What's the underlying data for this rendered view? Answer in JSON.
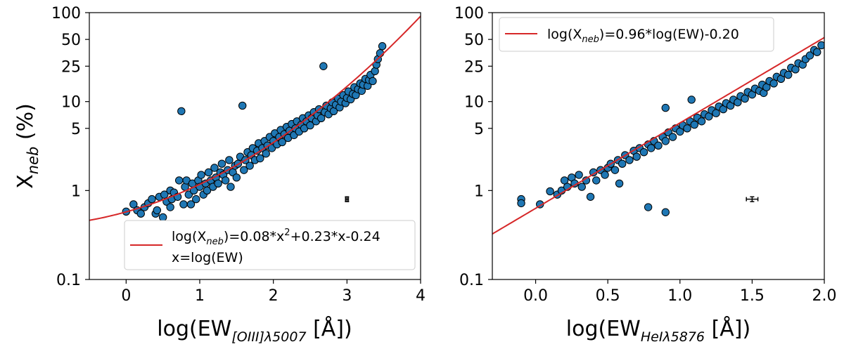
{
  "chart_data": [
    {
      "type": "scatter",
      "xlabel": "log(EW[OIII]λ5007 [Å])",
      "xlabel_main": "log(EW",
      "xlabel_sub": "[OIII]λ5007",
      "xlabel_tail": " [Å])",
      "ylabel": "Xneb (%)",
      "ylabel_main": "X",
      "ylabel_sub": "neb",
      "ylabel_tail": " (%)",
      "yscale": "log",
      "xlim": [
        -0.5,
        4.0
      ],
      "ylim": [
        0.1,
        100
      ],
      "xticks": [
        "0",
        "1",
        "2",
        "3",
        "4"
      ],
      "xtick_values": [
        0,
        1,
        2,
        3,
        4
      ],
      "yticks": [
        "0.1",
        "1",
        "5",
        "10",
        "25",
        "50",
        "100"
      ],
      "ytick_values": [
        0.1,
        1,
        5,
        10,
        25,
        50,
        100
      ],
      "fit": {
        "kind": "quadratic",
        "coeffs": [
          0.08,
          0.23,
          -0.24
        ],
        "color": "#d62728",
        "legend_line1": "log(Xneb)=0.08*x²+0.23*x-0.24",
        "legend_line1_a": "log(X",
        "legend_line1_sub": "neb",
        "legend_line1_b": ")=0.08*x",
        "legend_line1_sup": "2",
        "legend_line1_c": "+0.23*x-0.24",
        "legend_line2": "x=log(EW)",
        "legend_loc": "lower-right"
      },
      "errorbar": {
        "x": 3.0,
        "y": 0.8,
        "xerr": 0.02,
        "yerr": 0.05
      },
      "point_color": "#1f77b4",
      "points": [
        [
          0,
          0.58
        ],
        [
          0.1,
          0.7
        ],
        [
          0.15,
          0.6
        ],
        [
          0.2,
          0.55
        ],
        [
          0.25,
          0.65
        ],
        [
          0.3,
          0.72
        ],
        [
          0.35,
          0.8
        ],
        [
          0.4,
          0.55
        ],
        [
          0.42,
          0.6
        ],
        [
          0.45,
          0.85
        ],
        [
          0.5,
          0.5
        ],
        [
          0.52,
          0.9
        ],
        [
          0.55,
          0.75
        ],
        [
          0.6,
          0.65
        ],
        [
          0.6,
          1.0
        ],
        [
          0.62,
          0.8
        ],
        [
          0.65,
          0.95
        ],
        [
          0.7,
          0.85
        ],
        [
          0.72,
          1.3
        ],
        [
          0.75,
          7.8
        ],
        [
          0.78,
          0.7
        ],
        [
          0.8,
          1.1
        ],
        [
          0.82,
          1.3
        ],
        [
          0.85,
          0.9
        ],
        [
          0.88,
          0.7
        ],
        [
          0.9,
          1.2
        ],
        [
          0.92,
          1.0
        ],
        [
          0.95,
          0.8
        ],
        [
          0.98,
          1.3
        ],
        [
          1.0,
          1.1
        ],
        [
          1.02,
          1.5
        ],
        [
          1.05,
          0.9
        ],
        [
          1.08,
          1.2
        ],
        [
          1.1,
          1.0
        ],
        [
          1.12,
          1.6
        ],
        [
          1.15,
          1.3
        ],
        [
          1.18,
          1.1
        ],
        [
          1.2,
          1.8
        ],
        [
          1.22,
          1.4
        ],
        [
          1.25,
          1.2
        ],
        [
          1.28,
          1.6
        ],
        [
          1.3,
          2.0
        ],
        [
          1.32,
          1.5
        ],
        [
          1.35,
          1.3
        ],
        [
          1.38,
          1.7
        ],
        [
          1.4,
          2.2
        ],
        [
          1.42,
          1.1
        ],
        [
          1.45,
          1.6
        ],
        [
          1.48,
          1.9
        ],
        [
          1.5,
          1.4
        ],
        [
          1.52,
          2.0
        ],
        [
          1.55,
          2.4
        ],
        [
          1.58,
          9.0
        ],
        [
          1.6,
          1.7
        ],
        [
          1.62,
          2.2
        ],
        [
          1.65,
          2.7
        ],
        [
          1.68,
          1.9
        ],
        [
          1.7,
          2.5
        ],
        [
          1.72,
          3.0
        ],
        [
          1.75,
          2.2
        ],
        [
          1.78,
          2.8
        ],
        [
          1.8,
          3.4
        ],
        [
          1.82,
          2.3
        ],
        [
          1.85,
          3.0
        ],
        [
          1.88,
          3.6
        ],
        [
          1.9,
          2.6
        ],
        [
          1.92,
          3.2
        ],
        [
          1.95,
          4.0
        ],
        [
          1.98,
          3.0
        ],
        [
          2.0,
          3.6
        ],
        [
          2.02,
          4.4
        ],
        [
          2.05,
          3.3
        ],
        [
          2.08,
          4.0
        ],
        [
          2.1,
          4.8
        ],
        [
          2.12,
          3.5
        ],
        [
          2.15,
          4.3
        ],
        [
          2.18,
          5.2
        ],
        [
          2.2,
          3.9
        ],
        [
          2.22,
          4.7
        ],
        [
          2.25,
          5.6
        ],
        [
          2.28,
          4.2
        ],
        [
          2.3,
          5.0
        ],
        [
          2.32,
          6.0
        ],
        [
          2.35,
          4.6
        ],
        [
          2.38,
          5.5
        ],
        [
          2.4,
          6.5
        ],
        [
          2.42,
          5.0
        ],
        [
          2.45,
          6.0
        ],
        [
          2.48,
          7.0
        ],
        [
          2.5,
          5.4
        ],
        [
          2.52,
          6.5
        ],
        [
          2.55,
          7.6
        ],
        [
          2.58,
          6.0
        ],
        [
          2.6,
          7.0
        ],
        [
          2.62,
          8.2
        ],
        [
          2.65,
          6.5
        ],
        [
          2.68,
          25.0
        ],
        [
          2.7,
          7.6
        ],
        [
          2.72,
          9.0
        ],
        [
          2.75,
          7.2
        ],
        [
          2.78,
          8.4
        ],
        [
          2.8,
          9.8
        ],
        [
          2.82,
          7.8
        ],
        [
          2.85,
          9.2
        ],
        [
          2.88,
          10.8
        ],
        [
          2.9,
          8.6
        ],
        [
          2.92,
          10.0
        ],
        [
          2.95,
          11.8
        ],
        [
          2.98,
          9.6
        ],
        [
          3.0,
          11.0
        ],
        [
          3.02,
          13.0
        ],
        [
          3.05,
          10.6
        ],
        [
          3.08,
          12.2
        ],
        [
          3.1,
          14.5
        ],
        [
          3.12,
          11.8
        ],
        [
          3.15,
          13.8
        ],
        [
          3.18,
          16.0
        ],
        [
          3.2,
          13.2
        ],
        [
          3.22,
          15.5
        ],
        [
          3.25,
          18.0
        ],
        [
          3.28,
          15.0
        ],
        [
          3.3,
          17.5
        ],
        [
          3.32,
          20.0
        ],
        [
          3.35,
          17.0
        ],
        [
          3.38,
          22.0
        ],
        [
          3.4,
          26.0
        ],
        [
          3.42,
          30.0
        ],
        [
          3.45,
          35.0
        ],
        [
          3.48,
          42.0
        ]
      ]
    },
    {
      "type": "scatter",
      "xlabel": "log(EWHeIλ5876 [Å])",
      "xlabel_main": "log(EW",
      "xlabel_sub": "HeIλ5876",
      "xlabel_tail": " [Å])",
      "yscale": "log",
      "xlim": [
        -0.3,
        2.0
      ],
      "ylim": [
        0.1,
        100
      ],
      "xticks": [
        "0.0",
        "0.5",
        "1.0",
        "1.5",
        "2.0"
      ],
      "xtick_values": [
        0.0,
        0.5,
        1.0,
        1.5,
        2.0
      ],
      "yticks": [
        "0.1",
        "1",
        "5",
        "10",
        "25",
        "50",
        "100"
      ],
      "ytick_values": [
        0.1,
        1,
        5,
        10,
        25,
        50,
        100
      ],
      "fit": {
        "kind": "linear",
        "slope": 0.96,
        "intercept": -0.2,
        "color": "#d62728",
        "legend_line1": "log(Xneb)=0.96*log(EW)-0.20",
        "legend_line1_a": "log(X",
        "legend_line1_sub": "neb",
        "legend_line1_b": ")=0.96*log(EW)-0.20",
        "legend_loc": "upper-left"
      },
      "errorbar": {
        "x": 1.5,
        "y": 0.8,
        "xerr": 0.04,
        "yerr": 0.05
      },
      "point_color": "#1f77b4",
      "points": [
        [
          -0.1,
          0.8
        ],
        [
          -0.1,
          0.72
        ],
        [
          0.03,
          0.7
        ],
        [
          0.1,
          0.98
        ],
        [
          0.15,
          0.9
        ],
        [
          0.18,
          1.0
        ],
        [
          0.2,
          1.3
        ],
        [
          0.22,
          1.1
        ],
        [
          0.25,
          1.4
        ],
        [
          0.27,
          1.2
        ],
        [
          0.3,
          1.5
        ],
        [
          0.32,
          1.1
        ],
        [
          0.35,
          1.3
        ],
        [
          0.38,
          0.85
        ],
        [
          0.4,
          1.6
        ],
        [
          0.42,
          1.3
        ],
        [
          0.45,
          1.7
        ],
        [
          0.48,
          1.5
        ],
        [
          0.5,
          1.8
        ],
        [
          0.52,
          2.0
        ],
        [
          0.55,
          1.7
        ],
        [
          0.57,
          2.2
        ],
        [
          0.58,
          1.2
        ],
        [
          0.6,
          2.0
        ],
        [
          0.62,
          2.5
        ],
        [
          0.65,
          2.2
        ],
        [
          0.68,
          2.8
        ],
        [
          0.7,
          2.4
        ],
        [
          0.72,
          3.0
        ],
        [
          0.75,
          2.7
        ],
        [
          0.78,
          0.65
        ],
        [
          0.78,
          3.3
        ],
        [
          0.8,
          3.0
        ],
        [
          0.82,
          3.6
        ],
        [
          0.85,
          3.2
        ],
        [
          0.88,
          4.0
        ],
        [
          0.9,
          0.57
        ],
        [
          0.9,
          3.6
        ],
        [
          0.9,
          8.5
        ],
        [
          0.92,
          4.5
        ],
        [
          0.95,
          4.0
        ],
        [
          0.97,
          5.0
        ],
        [
          1.0,
          4.6
        ],
        [
          1.02,
          5.4
        ],
        [
          1.05,
          5.0
        ],
        [
          1.07,
          6.0
        ],
        [
          1.08,
          10.5
        ],
        [
          1.1,
          5.5
        ],
        [
          1.12,
          6.6
        ],
        [
          1.15,
          6.0
        ],
        [
          1.17,
          7.2
        ],
        [
          1.2,
          6.8
        ],
        [
          1.22,
          8.0
        ],
        [
          1.25,
          7.4
        ],
        [
          1.27,
          8.8
        ],
        [
          1.3,
          8.2
        ],
        [
          1.32,
          9.6
        ],
        [
          1.35,
          9.0
        ],
        [
          1.37,
          10.5
        ],
        [
          1.4,
          9.8
        ],
        [
          1.42,
          11.5
        ],
        [
          1.45,
          10.8
        ],
        [
          1.47,
          12.8
        ],
        [
          1.5,
          12.0
        ],
        [
          1.52,
          14.0
        ],
        [
          1.55,
          13.2
        ],
        [
          1.57,
          15.5
        ],
        [
          1.58,
          12.5
        ],
        [
          1.6,
          14.5
        ],
        [
          1.62,
          17.0
        ],
        [
          1.65,
          16.0
        ],
        [
          1.67,
          19.0
        ],
        [
          1.7,
          18.0
        ],
        [
          1.72,
          21.0
        ],
        [
          1.75,
          20.0
        ],
        [
          1.77,
          24.0
        ],
        [
          1.8,
          23.0
        ],
        [
          1.82,
          27.0
        ],
        [
          1.85,
          26.0
        ],
        [
          1.87,
          30.0
        ],
        [
          1.9,
          33.0
        ],
        [
          1.93,
          38.0
        ],
        [
          1.95,
          36.0
        ],
        [
          1.98,
          43.0
        ]
      ]
    }
  ]
}
